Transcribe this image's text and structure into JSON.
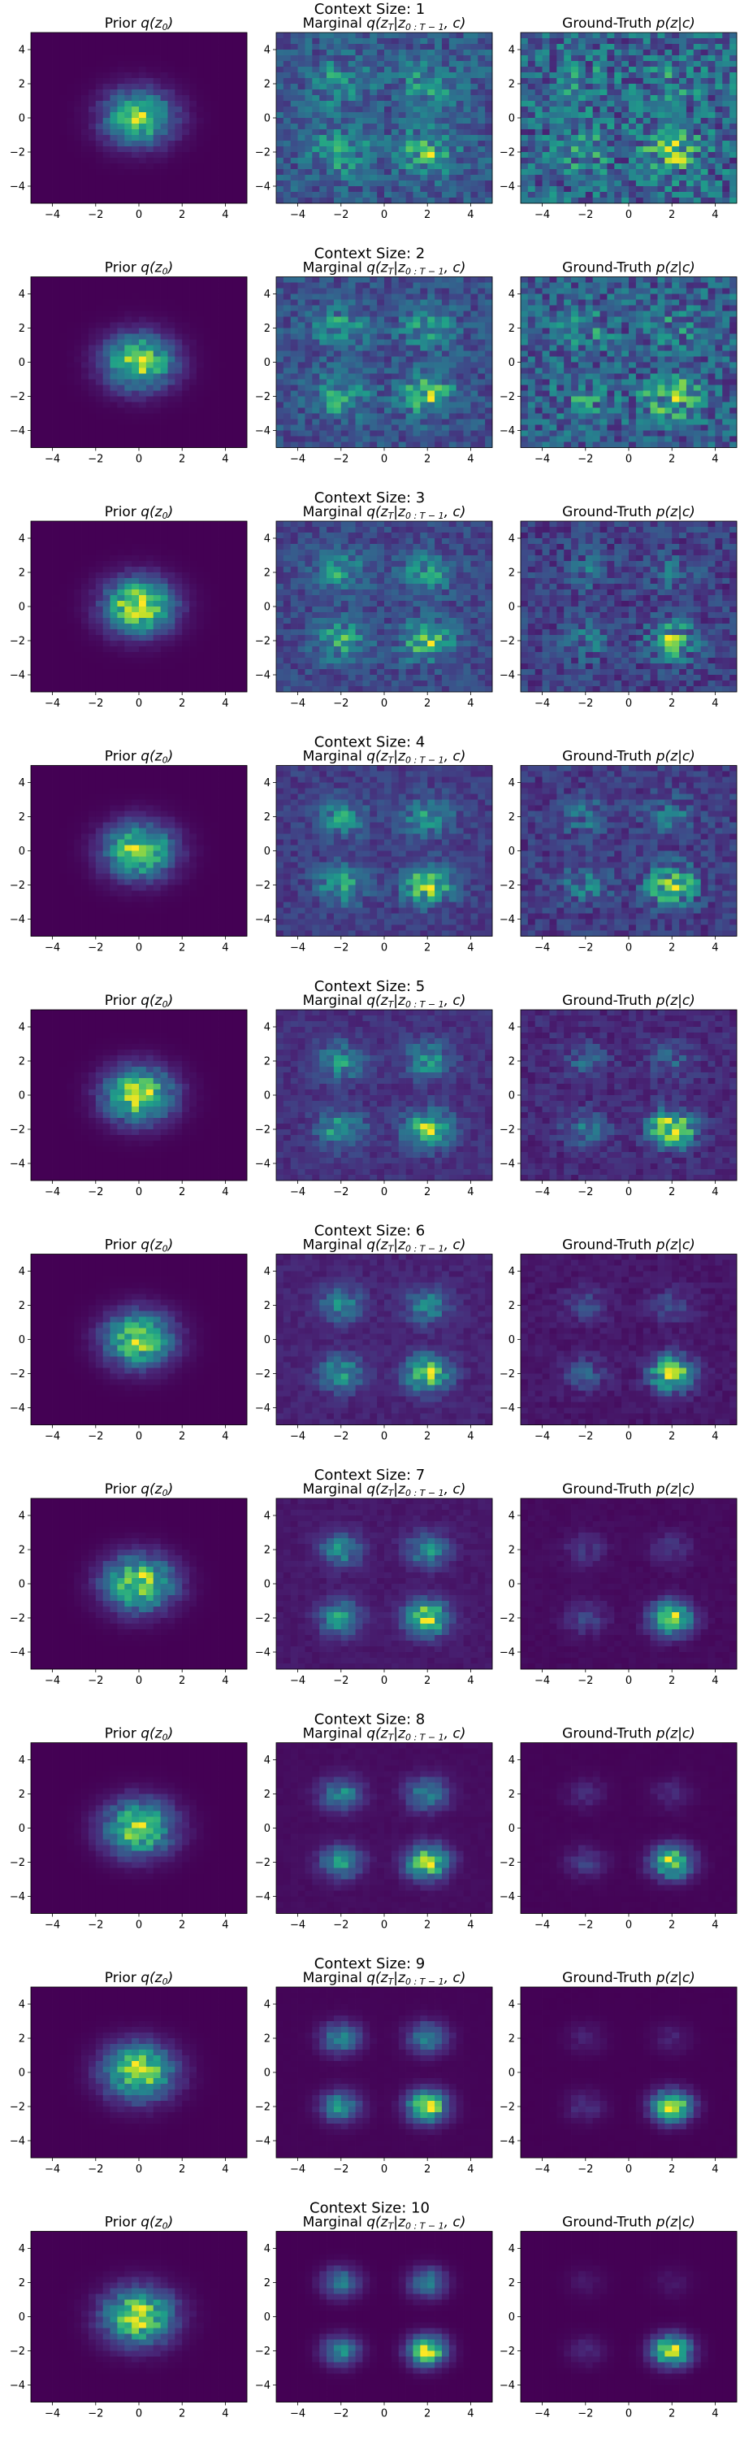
{
  "figure": {
    "row_title_prefix": "Context Size: ",
    "panel_titles": [
      {
        "plain": "Prior ",
        "math": "q(z",
        "sub": "0",
        "tail": ")"
      },
      {
        "plain": "Marginal ",
        "math": "q(z",
        "sub": "T",
        "mid": "|z",
        "sub2": "0 : T − 1",
        "tail": ", c)"
      },
      {
        "plain": "Ground-Truth ",
        "math": "p(z|c)",
        "sub": "",
        "tail": ""
      }
    ],
    "colormap": "viridis",
    "colors": {
      "low": "#440154",
      "mid": "#21918c",
      "high": "#fde725"
    }
  },
  "chart_data": {
    "type": "heatmap",
    "layout": "10 rows x 3 columns",
    "xlim": [
      -5,
      5
    ],
    "ylim": [
      -5,
      5
    ],
    "xticks": [
      -4,
      -2,
      0,
      2,
      4
    ],
    "yticks": [
      -4,
      -2,
      0,
      2,
      4
    ],
    "bins": 30,
    "grid": false,
    "rows": [
      {
        "context_size": 1
      },
      {
        "context_size": 2
      },
      {
        "context_size": 3
      },
      {
        "context_size": 4
      },
      {
        "context_size": 5
      },
      {
        "context_size": 6
      },
      {
        "context_size": 7
      },
      {
        "context_size": 8
      },
      {
        "context_size": 9
      },
      {
        "context_size": 10
      }
    ],
    "prior": {
      "center": [
        0,
        0
      ],
      "spread": 1.0
    },
    "target_mode_centers": [
      [
        -2,
        2
      ],
      [
        2,
        2
      ],
      [
        -2,
        -2
      ],
      [
        2,
        -2
      ]
    ],
    "dominant_mode": [
      2,
      -2
    ]
  }
}
